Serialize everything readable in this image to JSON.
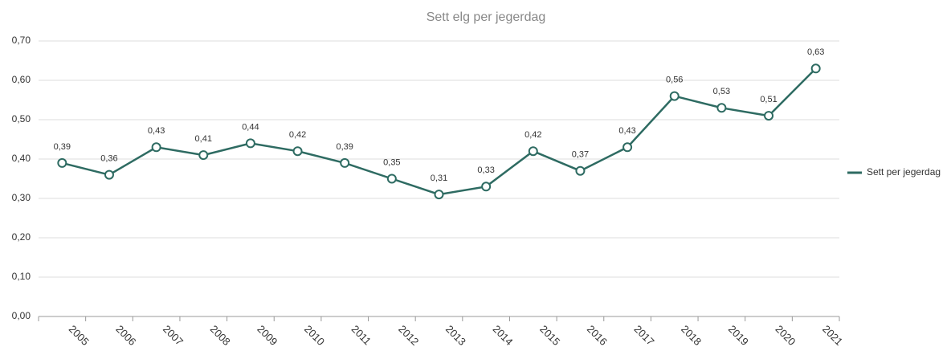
{
  "chart_data": {
    "type": "line",
    "title": "Sett elg per jegerdag",
    "categories": [
      "2005",
      "2006",
      "2007",
      "2008",
      "2009",
      "2010",
      "2011",
      "2012",
      "2013",
      "2014",
      "2015",
      "2016",
      "2017",
      "2018",
      "2019",
      "2020",
      "2021"
    ],
    "series": [
      {
        "name": "Sett per jegerdag",
        "color": "#2e6b62",
        "values": [
          0.39,
          0.36,
          0.43,
          0.41,
          0.44,
          0.42,
          0.39,
          0.35,
          0.31,
          0.33,
          0.42,
          0.37,
          0.43,
          0.56,
          0.53,
          0.51,
          0.63
        ],
        "value_labels": [
          "0,39",
          "0,36",
          "0,43",
          "0,41",
          "0,44",
          "0,42",
          "0,39",
          "0,35",
          "0,31",
          "0,33",
          "0,42",
          "0,37",
          "0,43",
          "0,56",
          "0,53",
          "0,51",
          "0,63"
        ]
      }
    ],
    "ylim": [
      0,
      0.7
    ],
    "yticks": [
      {
        "value": 0,
        "label": "0,00"
      },
      {
        "value": 0.1,
        "label": "0,10"
      },
      {
        "value": 0.2,
        "label": "0,20"
      },
      {
        "value": 0.3,
        "label": "0,30"
      },
      {
        "value": 0.4,
        "label": "0,40"
      },
      {
        "value": 0.5,
        "label": "0,50"
      },
      {
        "value": 0.6,
        "label": "0,60"
      },
      {
        "value": 0.7,
        "label": "0,70"
      }
    ],
    "grid": true,
    "legend": "right"
  }
}
